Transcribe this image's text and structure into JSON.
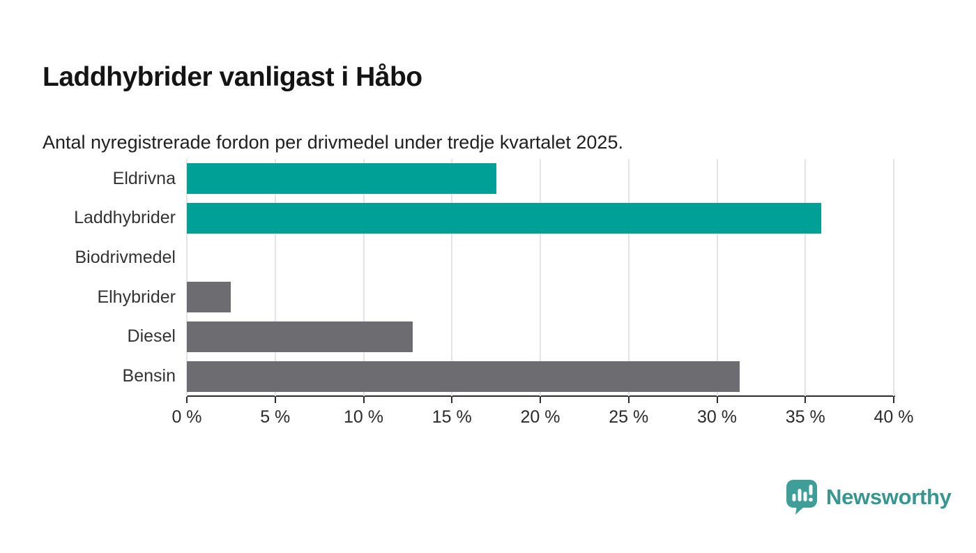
{
  "header": {
    "title": "Laddhybrider vanligast i Håbo",
    "subtitle": "Antal nyregistrerade fordon per drivmedel under tredje kvartalet 2025."
  },
  "chart_data": {
    "type": "bar",
    "orientation": "horizontal",
    "title": "Laddhybrider vanligast i Håbo",
    "subtitle": "Antal nyregistrerade fordon per drivmedel under tredje kvartalet 2025.",
    "categories": [
      "Eldrivna",
      "Laddhybrider",
      "Biodrivmedel",
      "Elhybrider",
      "Diesel",
      "Bensin"
    ],
    "values": [
      17.5,
      35.9,
      0,
      2.5,
      12.8,
      31.3
    ],
    "unit": "%",
    "bar_colors": [
      "#00a096",
      "#00a096",
      "#00a096",
      "#6c6c71",
      "#6c6c71",
      "#6c6c71"
    ],
    "xlim": [
      0,
      40
    ],
    "x_ticks": [
      0,
      5,
      10,
      15,
      20,
      25,
      30,
      35,
      40
    ],
    "x_tick_labels": [
      "0 %",
      "5 %",
      "10 %",
      "15 %",
      "20 %",
      "25 %",
      "30 %",
      "35 %",
      "40 %"
    ],
    "grid": true,
    "legend": "none",
    "xlabel": "",
    "ylabel": ""
  },
  "colors": {
    "accent_teal": "#00a096",
    "neutral_gray": "#6c6c71",
    "gridline": "#e4e4e4",
    "axis": "#2d2d2d",
    "logo_teal": "#3f9e98",
    "wordmark_teal": "#37968f"
  },
  "branding": {
    "logo_icon": "newsworthy-speech-bubble-barchart-icon",
    "logo_text": "Newsworthy"
  }
}
